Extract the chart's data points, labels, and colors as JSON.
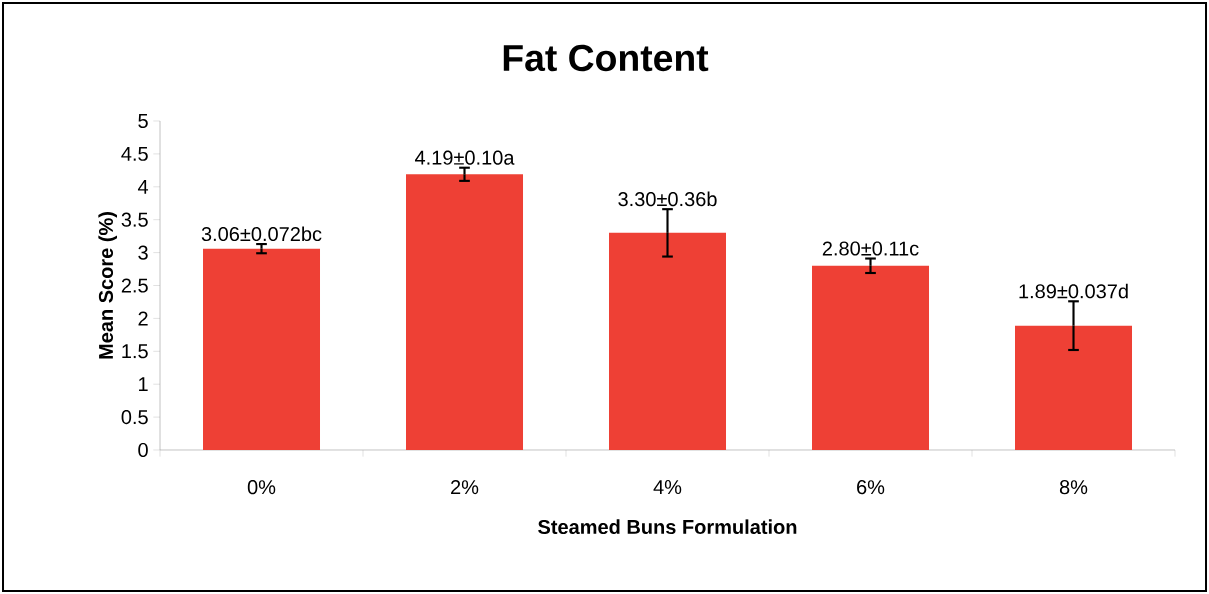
{
  "chart_data": {
    "type": "bar",
    "title": "Fat Content",
    "xlabel": "Steamed Buns Formulation",
    "ylabel": "Mean Score (%)",
    "categories": [
      "0%",
      "2%",
      "4%",
      "6%",
      "8%"
    ],
    "values": [
      3.06,
      4.19,
      3.3,
      2.8,
      1.89
    ],
    "errors": [
      0.07,
      0.1,
      0.36,
      0.11,
      0.37
    ],
    "value_labels": [
      "3.06±0.072bc",
      "4.19±0.10a",
      "3.30±0.36b",
      "2.80±0.11c",
      "1.89±0.037d"
    ],
    "color": "#ee4035",
    "ylim": [
      0,
      5
    ],
    "yticks": [
      0,
      0.5,
      1,
      1.5,
      2,
      2.5,
      3,
      3.5,
      4,
      4.5,
      5
    ],
    "grid": false
  }
}
